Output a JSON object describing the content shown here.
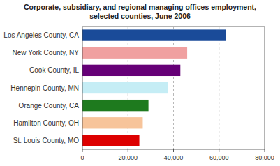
{
  "chart_data": {
    "type": "bar",
    "orientation": "horizontal",
    "title": "Corporate, subsidiary, and regional managing offices employment,",
    "subtitle": "selected counties, June 2006",
    "categories": [
      "St. Louis County, MO",
      "Hamilton County, OH",
      "Orange County, CA",
      "Hennepin County, MN",
      "Cook County, IL",
      "New York County, NY",
      "Los Angeles County, CA"
    ],
    "values": [
      25000,
      26500,
      29000,
      37500,
      43000,
      46000,
      63000
    ],
    "colors": [
      "#dd0000",
      "#f7c49a",
      "#1e7a1e",
      "#c5edf5",
      "#660077",
      "#f0a0a0",
      "#1a4b99"
    ],
    "xlim": [
      0,
      80000
    ],
    "xticks": [
      0,
      {
        "value": 20000,
        "label": "20,000"
      },
      {
        "value": 40000,
        "label": "40,000"
      },
      {
        "value": 60000,
        "label": "60,000"
      },
      {
        "value": 80000,
        "label": "80,000"
      }
    ],
    "grid": true
  }
}
